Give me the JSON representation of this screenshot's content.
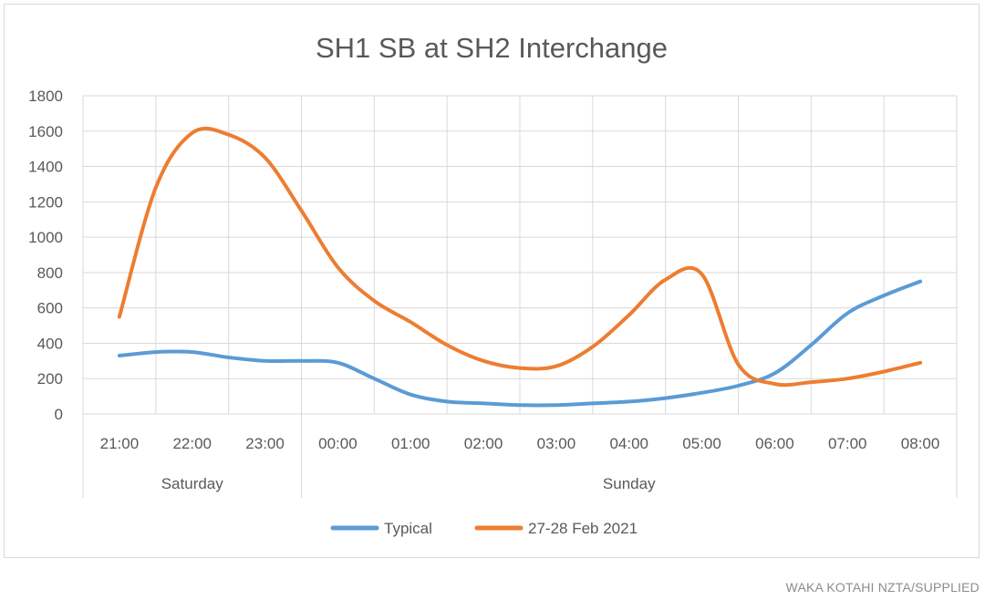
{
  "chart_data": {
    "type": "line",
    "title": "SH1 SB at SH2 Interchange",
    "xlabel": "",
    "ylabel": "",
    "ylim": [
      0,
      1800
    ],
    "yticks": [
      "0",
      "200",
      "400",
      "600",
      "800",
      "1000",
      "1200",
      "1400",
      "1600",
      "1800"
    ],
    "categories": [
      "21:00",
      "22:00",
      "23:00",
      "00:00",
      "01:00",
      "02:00",
      "03:00",
      "04:00",
      "05:00",
      "06:00",
      "07:00",
      "08:00"
    ],
    "groups": [
      {
        "label": "Saturday",
        "span": [
          0,
          2
        ]
      },
      {
        "label": "Sunday",
        "span": [
          3,
          11
        ]
      }
    ],
    "x": [
      0,
      0.5,
      1,
      1.5,
      2,
      2.5,
      3,
      3.5,
      4,
      4.5,
      5,
      5.5,
      6,
      6.5,
      7,
      7.5,
      8,
      8.5,
      9,
      9.5,
      10,
      10.5,
      11
    ],
    "series": [
      {
        "name": "Typical",
        "color": "#5b9bd5",
        "values": [
          330,
          350,
          350,
          320,
          300,
          300,
          290,
          200,
          110,
          70,
          60,
          50,
          50,
          60,
          70,
          90,
          120,
          160,
          230,
          390,
          570,
          670,
          750
        ]
      },
      {
        "name": "27-28 Feb 2021",
        "color": "#ed7d31",
        "values": [
          550,
          1280,
          1590,
          1580,
          1450,
          1150,
          830,
          640,
          520,
          390,
          300,
          260,
          270,
          380,
          560,
          760,
          790,
          280,
          170,
          180,
          200,
          240,
          290
        ]
      }
    ],
    "grid": true,
    "legend": "bottom"
  },
  "credit": "WAKA KOTAHI NZTA/SUPPLIED"
}
